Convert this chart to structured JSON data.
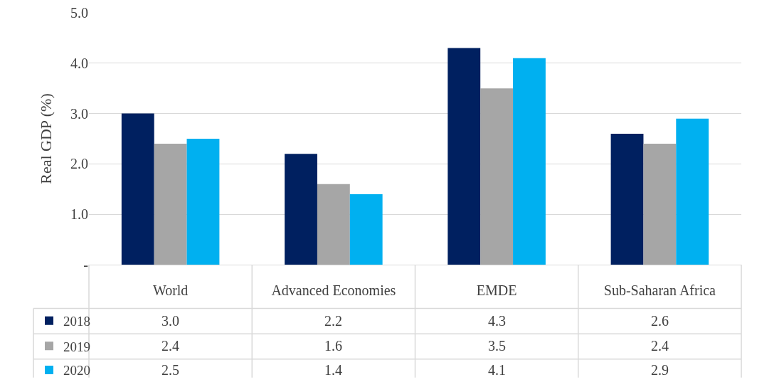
{
  "chart_data": {
    "type": "bar",
    "ylabel": "Real GDP (%)",
    "categories": [
      "World",
      "Advanced Economies",
      "EMDE",
      "Sub-Saharan Africa"
    ],
    "series": [
      {
        "name": "2018",
        "color": "#002060",
        "values": [
          3.0,
          2.2,
          4.3,
          2.6
        ],
        "value_labels": [
          "3.0",
          "2.2",
          "4.3",
          "2.6"
        ]
      },
      {
        "name": "2019",
        "color": "#a6a6a6",
        "values": [
          2.4,
          1.6,
          3.5,
          2.4
        ],
        "value_labels": [
          "2.4",
          "1.6",
          "3.5",
          "2.4"
        ]
      },
      {
        "name": "2020",
        "color": "#00b0f0",
        "values": [
          2.5,
          1.4,
          4.1,
          2.9
        ],
        "value_labels": [
          "2.5",
          "1.4",
          "4.1",
          "2.9"
        ]
      }
    ],
    "ylim": [
      0,
      5
    ],
    "yticks": [
      {
        "value": 0,
        "label": "-"
      },
      {
        "value": 1,
        "label": "1.0"
      },
      {
        "value": 2,
        "label": "2.0"
      },
      {
        "value": 3,
        "label": "3.0"
      },
      {
        "value": 4,
        "label": "4.0"
      },
      {
        "value": 5,
        "label": "5.0"
      }
    ],
    "grid": "y",
    "legend": "bottom left"
  }
}
